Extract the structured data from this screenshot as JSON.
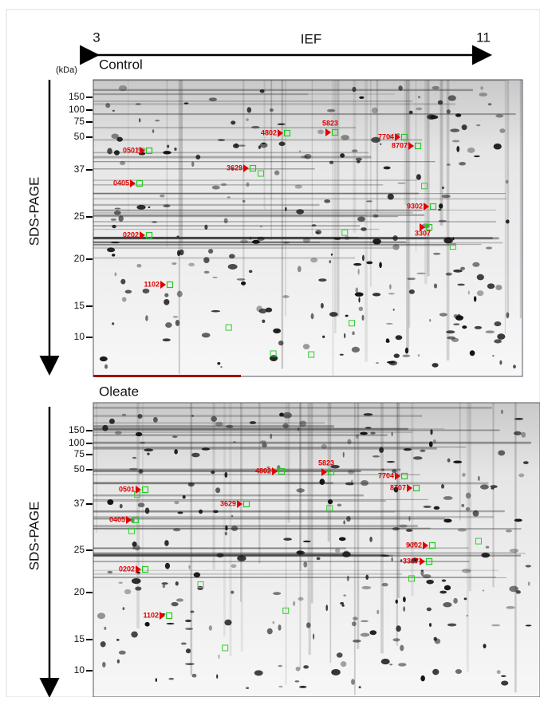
{
  "ief_axis": {
    "start": "3",
    "label": "IEF",
    "end": "11"
  },
  "units": "(kDa)",
  "panels": [
    {
      "title": "Control",
      "side_label": "SDS-PAGE",
      "mw_ticks": [
        "150",
        "100",
        "75",
        "50",
        "37",
        "25",
        "20",
        "15",
        "10"
      ],
      "spots": [
        "0501",
        "0405",
        "0202",
        "1102",
        "3629",
        "4802",
        "5823",
        "7704",
        "8707",
        "9302",
        "3307"
      ]
    },
    {
      "title": "Oleate",
      "side_label": "SDS-PAGE",
      "mw_ticks": [
        "150",
        "100",
        "75",
        "50",
        "37",
        "25",
        "20",
        "15",
        "10"
      ],
      "spots": [
        "0501",
        "0405",
        "0202",
        "1102",
        "3629",
        "4802",
        "5823",
        "7704",
        "8707",
        "9302",
        "3307"
      ]
    }
  ]
}
